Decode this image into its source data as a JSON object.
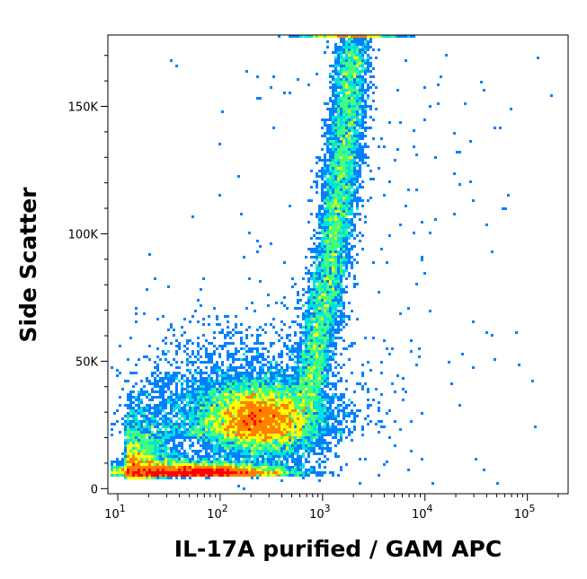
{
  "chart_data": {
    "type": "scatter",
    "style": "flow-cytometry density dot plot",
    "xlabel": "IL-17A purified / GAM APC",
    "ylabel": "Side Scatter",
    "x_scale": "log",
    "xlim": [
      8,
      250000
    ],
    "ylim": [
      -2000,
      178000
    ],
    "x_ticks": [
      {
        "value": 10,
        "base": "10",
        "exp": "1"
      },
      {
        "value": 100,
        "base": "10",
        "exp": "2"
      },
      {
        "value": 1000,
        "base": "10",
        "exp": "3"
      },
      {
        "value": 10000,
        "base": "10",
        "exp": "4"
      },
      {
        "value": 100000,
        "base": "10",
        "exp": "5"
      }
    ],
    "y_ticks": [
      {
        "value": 0,
        "label": "0"
      },
      {
        "value": 50000,
        "label": "50K"
      },
      {
        "value": 100000,
        "label": "100K"
      },
      {
        "value": 150000,
        "label": "150K"
      }
    ],
    "grid": false,
    "legend": "none",
    "density_colormap": [
      "#0000ff",
      "#0080ff",
      "#00e0e0",
      "#40ff80",
      "#ffff00",
      "#ff8000",
      "#ff0000"
    ],
    "populations": [
      {
        "x": 250,
        "y": 27000,
        "density": 1.0
      },
      {
        "x": 100,
        "y": 5000,
        "density": 0.85
      },
      {
        "x": 20,
        "y": 8000,
        "density": 0.7
      },
      {
        "x": 1500,
        "y": 130000,
        "density": 0.55
      },
      {
        "x": 1200,
        "y": 90000,
        "density": 0.45
      },
      {
        "x": 2000,
        "y": 178000,
        "density": 0.5
      }
    ]
  }
}
